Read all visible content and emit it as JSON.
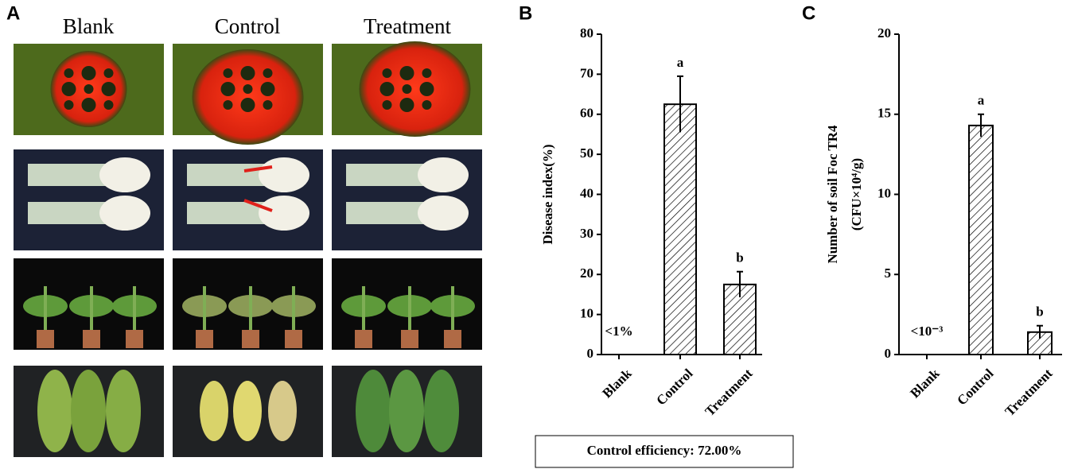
{
  "photo_panel": {
    "panel_label": "A",
    "columns": [
      "Blank",
      "Control",
      "Treatment"
    ]
  },
  "chart_data": [
    {
      "type": "bar",
      "panel_label": "B",
      "y_label": [
        "Disease index(%)"
      ],
      "categories": [
        "Blank",
        "Control",
        "Treatment"
      ],
      "values": [
        null,
        62.5,
        17.5
      ],
      "errors": [
        null,
        7,
        3.2
      ],
      "annotations": [
        "<1%",
        "a",
        "b"
      ],
      "ylim": [
        0,
        80
      ],
      "yticks": [
        0,
        10,
        20,
        30,
        40,
        50,
        60,
        70,
        80
      ],
      "color": "#000000",
      "pattern": "hatch",
      "footnote": "Control efficiency:  72.00%"
    },
    {
      "type": "bar",
      "panel_label": "C",
      "y_label": [
        "Number of soil Foc TR4",
        "(CFU×10⁴/g)"
      ],
      "categories": [
        "Blank",
        "Control",
        "Treatment"
      ],
      "values": [
        null,
        14.3,
        1.4
      ],
      "errors": [
        null,
        0.7,
        0.4
      ],
      "annotations": [
        "<10⁻³",
        "a",
        "b"
      ],
      "ylim": [
        0,
        20
      ],
      "yticks": [
        0,
        5,
        10,
        15,
        20
      ],
      "color": "#000000",
      "pattern": "hatch"
    }
  ]
}
